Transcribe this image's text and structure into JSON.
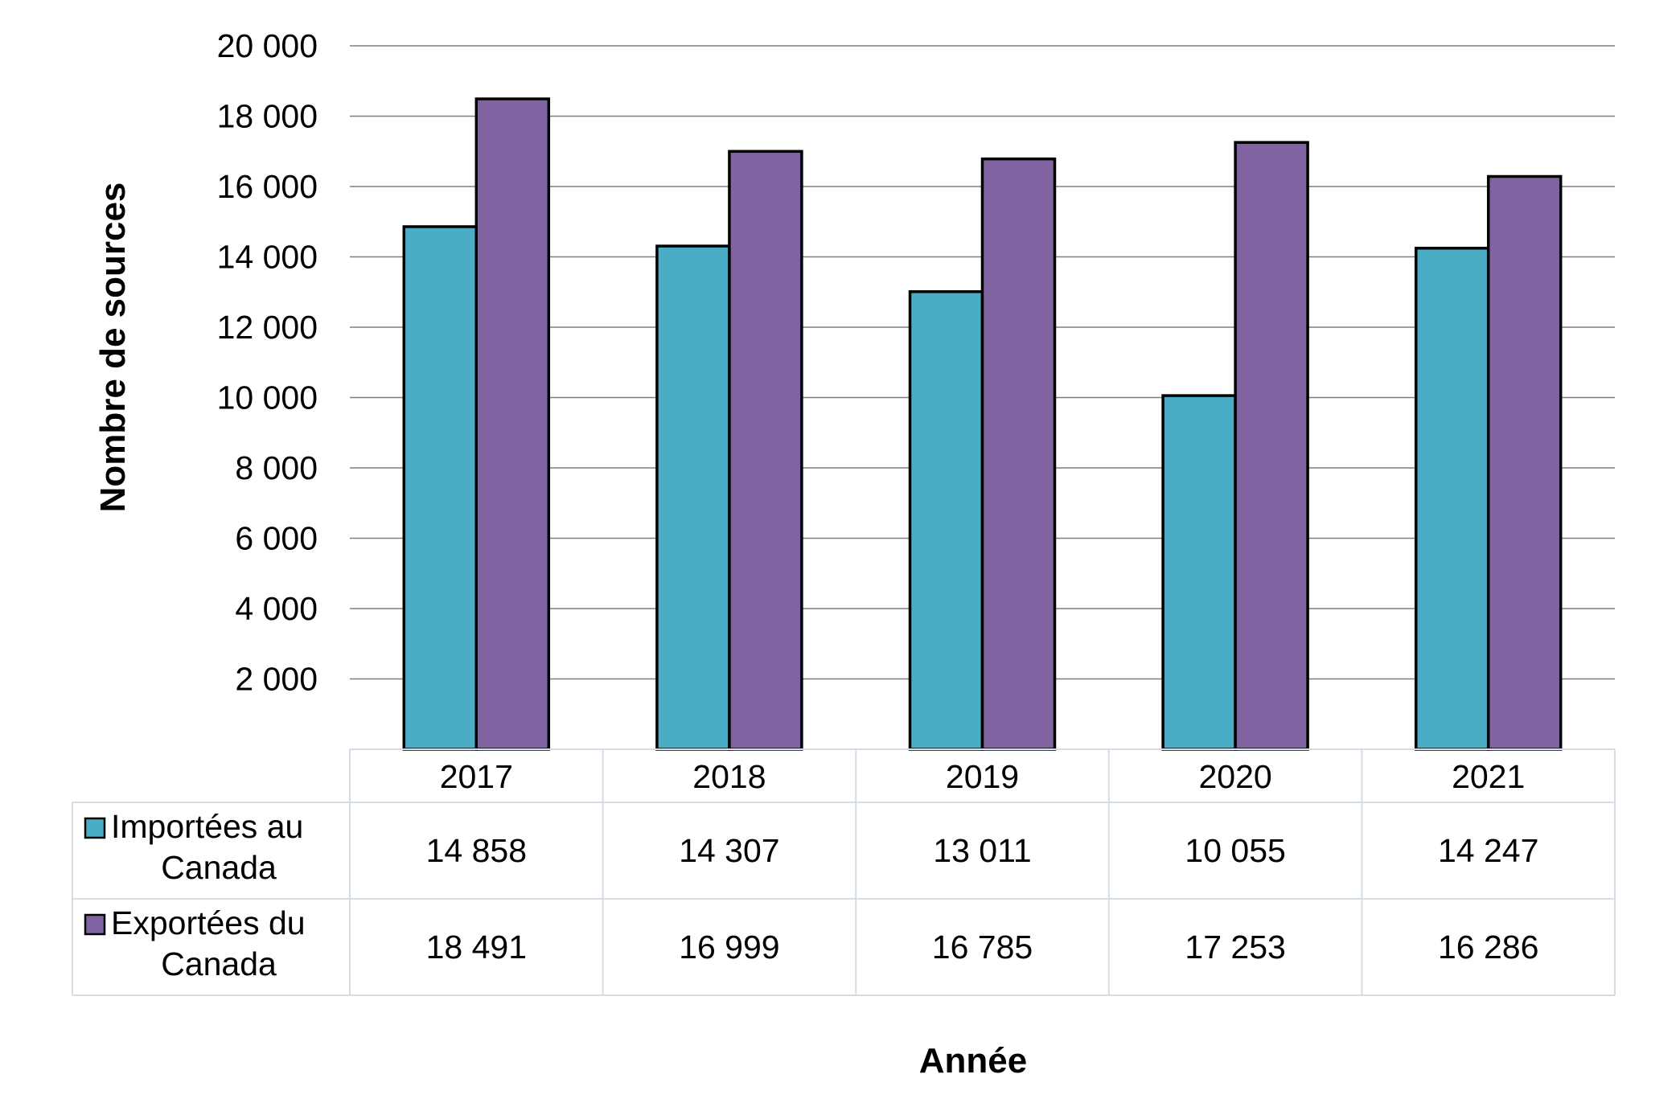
{
  "chart_data": {
    "type": "bar",
    "categories": [
      "2017",
      "2018",
      "2019",
      "2020",
      "2021"
    ],
    "series": [
      {
        "name": "Importées au Canada",
        "name_lines": [
          "Importées au",
          "Canada"
        ],
        "color": "#4BACC6",
        "values": [
          14858,
          14307,
          13011,
          10055,
          14247
        ],
        "labels": [
          "14 858",
          "14 307",
          "13 011",
          "10 055",
          "14 247"
        ]
      },
      {
        "name": "Exportées du Canada",
        "name_lines": [
          "Exportées du",
          "Canada"
        ],
        "color": "#8064A2",
        "values": [
          18491,
          16999,
          16785,
          17253,
          16286
        ],
        "labels": [
          "18 491",
          "16 999",
          "16 785",
          "17 253",
          "16 286"
        ]
      }
    ],
    "xlabel": "Année",
    "ylabel": "Nombre de sources",
    "ylim": [
      0,
      20000
    ],
    "yticks": [
      2000,
      4000,
      6000,
      8000,
      10000,
      12000,
      14000,
      16000,
      18000,
      20000
    ],
    "ytick_labels": [
      "2 000",
      "4 000",
      "6 000",
      "8 000",
      "10 000",
      "12 000",
      "14 000",
      "16 000",
      "18 000",
      "20 000"
    ],
    "grid": true,
    "legend": "data-table"
  }
}
